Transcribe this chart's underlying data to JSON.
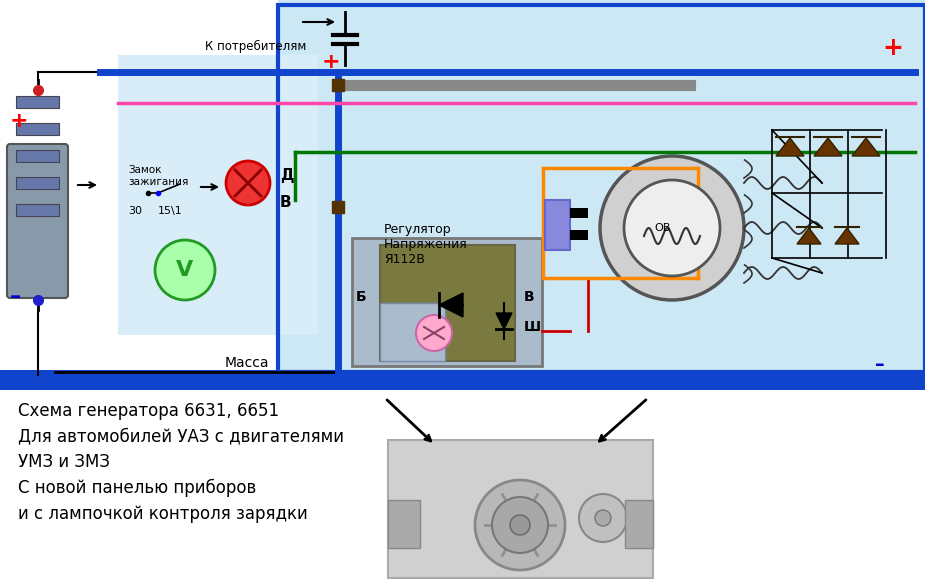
{
  "bg_color": "#ffffff",
  "circuit_bg": "#cce8f4",
  "panel_bg": "#d8edf8",
  "title_text": "Схема генератора 6631, 6651\nДля автомобилей УАЗ с двигателями\nУМЗ и ЗМЗ\nС новой панелью приборов\nи с лампочкой контроля зарядки",
  "regulator_text": "Регулятор\nНапряжения\nЯ112В",
  "consumers_text": "К потребителям",
  "massa_text": "Масса",
  "zamok_text": "Замок\nзажигания",
  "plus_color": "#ff0000",
  "minus_color": "#0000cc",
  "wire_blue": "#1144cc",
  "wire_green": "#007700",
  "wire_pink": "#ff44aa",
  "wire_orange": "#ff8800",
  "wire_black": "#111111",
  "wire_gray": "#888888",
  "wire_red": "#cc0000"
}
